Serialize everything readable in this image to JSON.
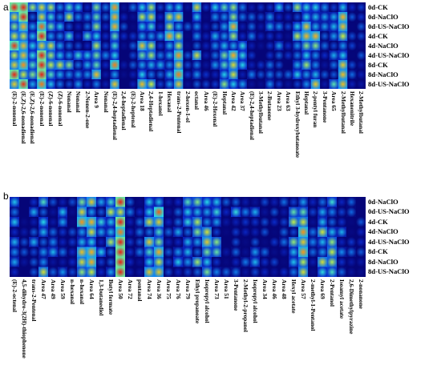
{
  "panel_a": {
    "letter": "a",
    "rows": [
      "0d-CK",
      "0d-NaClO",
      "0d-US-NaClO",
      "4d-CK",
      "4d-NaClO",
      "4d-US-NaClO",
      "8d-CK",
      "8d-NaClO",
      "8d-US-NaClO"
    ],
    "columns": [
      "(E)-2-nonenal",
      "(E,Z)-2,6-nonadienal",
      "(E,Z)-2,6-nonadienal",
      "(E)-2-nonenal",
      "(Z)-6-nonenal",
      "(Z)-6-nonenal",
      "Nonanal",
      "Nonanal",
      "2-Nonen-2-one",
      "Area 9",
      "Nonanal",
      "(E)-2,4-heptadienal",
      "2,4-heptadienal",
      "(E)-2-heptenal",
      "Area 18",
      "2,4-Heptadienal",
      "1-hexanol",
      "Hexanal",
      "trans-2-Pentenal",
      "2-hexen-1-ol",
      "octanal",
      "Area 46",
      "(E)-2-Hexenal",
      "Heptanal",
      "Area 42",
      "Area 37",
      "(E)-2,4-heptadienal",
      "3-Methylbutanal",
      "2-Butanone",
      "Area 23",
      "Area 63",
      "Ethyl 3-hydroxybutanoate",
      "Heptanal",
      "2-pentyl furan",
      "3-Pentanone",
      "Area 65",
      "2-Methylbutanal",
      "Hexanenitrile",
      "2-Methylbutanal"
    ]
  },
  "panel_b": {
    "letter": "b",
    "rows": [
      "0d-NaClO",
      "0d-US-NaClO",
      "4d-CK",
      "4d-NaClO",
      "4d-US-NaClO",
      "8d-CK",
      "8d-NaClO",
      "8d-US-NaClO"
    ],
    "columns": [
      "(E)-2-octenal",
      "4,5-dihydro-3(2H)-thiophenone",
      "trans-2-Pentenal",
      "Area 47",
      "Area 49",
      "Area 59",
      "n-hexanal",
      "n-hexanal",
      "Area 64",
      "1,3-butanediol",
      "Butyl formate",
      "Area 50",
      "Area 72",
      "pentanal",
      "Area 74",
      "Area 36",
      "Area 75",
      "Area 76",
      "Area 79",
      "Ethyl propanoate",
      "Isopropyl alcohol",
      "Area 73",
      "Area 51",
      "3-Pentanone",
      "2-Methyl-2-propanol",
      "Isopropyl alcohol",
      "Area 34",
      "Area 46",
      "Area 48",
      "Hexyl acetate",
      "Area 57",
      "2-methyl-1-Pentanol",
      "Area 69",
      "2-Pentanol",
      "Isoamyl acetate",
      "2,6-Dimethylpyrazine",
      "2-nonanone"
    ]
  }
}
